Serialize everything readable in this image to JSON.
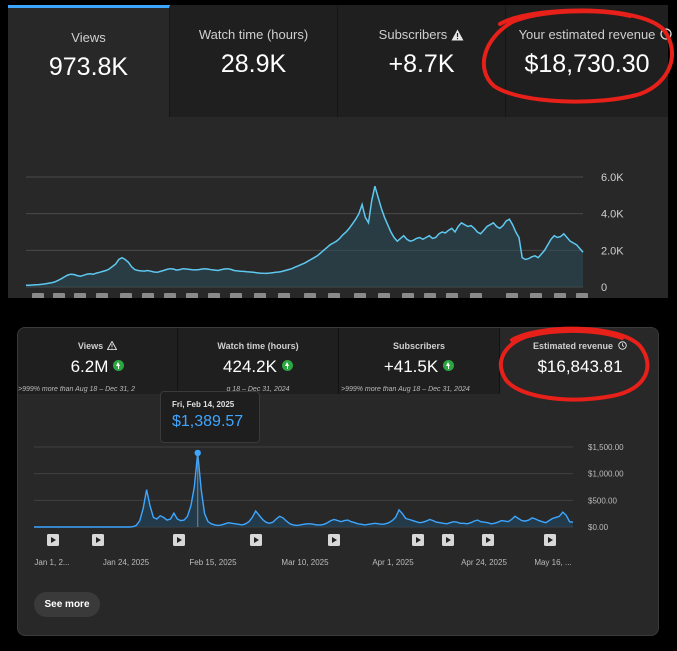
{
  "top_panel": {
    "metrics": [
      {
        "title": "Views",
        "value": "973.8K"
      },
      {
        "title": "Watch time (hours)",
        "value": "28.9K"
      },
      {
        "title": "Subscribers",
        "value": "+8.7K",
        "icon": "warning-icon"
      },
      {
        "title": "Your estimated revenue",
        "value": "$18,730.30",
        "icon": "clock-icon"
      }
    ],
    "chart_data": {
      "type": "area",
      "title": "",
      "y_ticks": [
        "6.0K",
        "4.0K",
        "2.0K",
        "0"
      ],
      "ylim": [
        0,
        6500
      ],
      "grid": true,
      "color": "#5ec8f0",
      "values": [
        100,
        100,
        110,
        120,
        130,
        150,
        170,
        200,
        230,
        280,
        360,
        450,
        550,
        650,
        700,
        680,
        620,
        590,
        640,
        700,
        720,
        700,
        760,
        800,
        850,
        900,
        980,
        1120,
        1250,
        1500,
        1600,
        1500,
        1350,
        1100,
        950,
        900,
        880,
        870,
        900,
        860,
        820,
        800,
        850,
        900,
        960,
        1000,
        980,
        920,
        950,
        1000,
        980,
        960,
        940,
        930,
        950,
        980,
        1000,
        970,
        940,
        920,
        900,
        950,
        980,
        1000,
        960,
        900,
        880,
        860,
        850,
        830,
        820,
        800,
        780,
        760,
        750,
        740,
        760,
        780,
        800,
        820,
        850,
        900,
        950,
        1000,
        1080,
        1150,
        1230,
        1300,
        1400,
        1500,
        1600,
        1700,
        1850,
        2000,
        2150,
        2300,
        2400,
        2500,
        2650,
        2850,
        3000,
        3200,
        3450,
        3700,
        4000,
        4500,
        3800,
        3500,
        4700,
        5500,
        4900,
        4300,
        3800,
        3400,
        3000,
        2700,
        2500,
        2650,
        2800,
        2600,
        2500,
        2550,
        2650,
        2700,
        2600,
        2700,
        2800,
        2650,
        2700,
        2900,
        3000,
        2950,
        3100,
        3200,
        3000,
        3300,
        3500,
        3400,
        3300,
        3350,
        3200,
        3000,
        2900,
        3100,
        3300,
        3400,
        3500,
        3300,
        3200,
        3350,
        3600,
        3700,
        3400,
        3000,
        2700,
        1600,
        1500,
        1550,
        1650,
        1700,
        1600,
        1800,
        2000,
        2300,
        2600,
        2800,
        2700,
        2750,
        2900,
        2700,
        2500,
        2400,
        2300,
        2100,
        1900
      ]
    }
  },
  "bottom_panel": {
    "metrics": [
      {
        "title": "Views",
        "value": "6.2M",
        "icon": "warning-icon",
        "badge": "up-arrow-icon",
        "subtext": ">999% more than Aug 18 – Dec 31, 2"
      },
      {
        "title": "Watch time (hours)",
        "value": "424.2K",
        "badge": "up-arrow-icon",
        "subtext": "g 18 – Dec 31, 2024"
      },
      {
        "title": "Subscribers",
        "value": "+41.5K",
        "badge": "up-arrow-icon",
        "subtext": ">999% more than Aug 18 – Dec 31, 2024"
      },
      {
        "title": "Estimated revenue",
        "value": "$16,843.81",
        "icon": "clock-icon"
      }
    ],
    "tooltip": {
      "date": "Fri, Feb 14, 2025",
      "value": "$1,389.57"
    },
    "see_more_label": "See more",
    "chart_data": {
      "type": "area",
      "title": "",
      "y_ticks": [
        "$1,500.00",
        "$1,000.00",
        "$500.00",
        "$0.00"
      ],
      "ylim": [
        0,
        1600
      ],
      "x_tick_labels": [
        "Jan 1, 2...",
        "Jan 24, 2025",
        "Feb 15, 2025",
        "Mar 10, 2025",
        "Apr 1, 2025",
        "Apr 24, 2025",
        "May 16, ..."
      ],
      "grid": true,
      "color": "#3ea6ff",
      "highlight": {
        "date": "Fri, Feb 14, 2025",
        "value": 1389.57
      },
      "values": [
        0,
        0,
        0,
        0,
        0,
        0,
        0,
        0,
        0,
        0,
        0,
        0,
        0,
        0,
        0,
        0,
        0,
        0,
        0,
        0,
        0,
        0,
        0,
        0,
        0,
        0,
        0,
        0,
        0,
        5,
        30,
        120,
        350,
        700,
        400,
        180,
        150,
        210,
        180,
        130,
        150,
        260,
        150,
        120,
        130,
        200,
        400,
        750,
        1389.57,
        700,
        250,
        100,
        60,
        40,
        30,
        40,
        60,
        80,
        70,
        60,
        50,
        40,
        60,
        100,
        180,
        300,
        220,
        140,
        90,
        70,
        90,
        150,
        200,
        170,
        110,
        60,
        40,
        30,
        40,
        50,
        60,
        60,
        50,
        40,
        40,
        50,
        80,
        120,
        140,
        120,
        100,
        120,
        130,
        100,
        80,
        60,
        50,
        40,
        50,
        60,
        70,
        60,
        50,
        60,
        80,
        120,
        180,
        320,
        250,
        160,
        140,
        120,
        100,
        80,
        90,
        110,
        140,
        120,
        90,
        80,
        70,
        60,
        80,
        100,
        90,
        70,
        70,
        60,
        80,
        110,
        130,
        100,
        90,
        80,
        60,
        70,
        90,
        120,
        110,
        100,
        140,
        200,
        160,
        120,
        110,
        130,
        170,
        150,
        120,
        100,
        80,
        120,
        160,
        180,
        200,
        280,
        220,
        100,
        90
      ]
    }
  }
}
